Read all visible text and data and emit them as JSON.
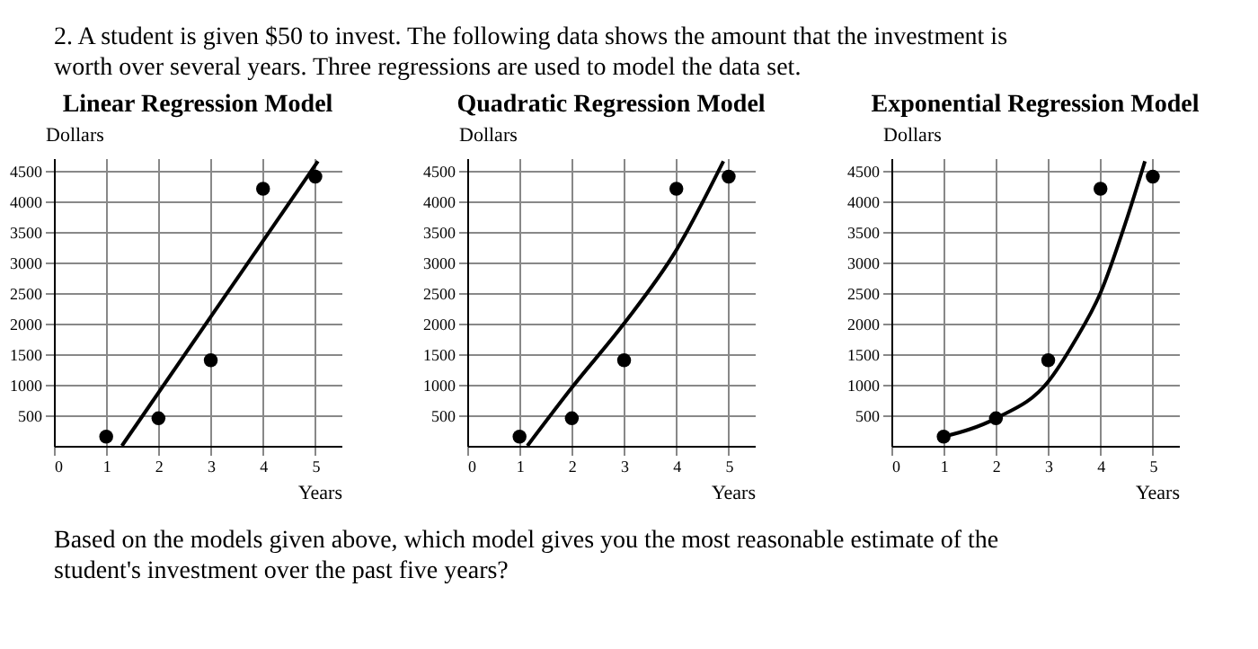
{
  "chart_data": [
    {
      "type": "scatter",
      "title": "Linear Regression Model",
      "xlabel": "Years",
      "ylabel": "Dollars",
      "xlim": [
        0,
        5.5
      ],
      "ylim": [
        0,
        4700
      ],
      "xticks": [
        0,
        1,
        2,
        3,
        4,
        5
      ],
      "yticks": [
        500,
        1000,
        1500,
        2000,
        2500,
        3000,
        3500,
        4000,
        4500
      ],
      "grid": true,
      "annotations": [
        "2. A student is given $50 to invest. The following data shows the amount that the investment is worth over several years. Three regressions are used to model the data set."
      ],
      "series": [
        {
          "marker": "circle",
          "color": "#000000",
          "x": [
            1,
            2,
            3,
            4,
            5
          ],
          "values": [
            150,
            450,
            1400,
            4200,
            4400
          ]
        },
        {
          "type": "line",
          "marker": "none",
          "color": "#000000",
          "x": [
            1.3,
            5.05
          ],
          "values": [
            0,
            4650
          ]
        }
      ]
    },
    {
      "type": "scatter",
      "title": "Quadratic Regression Model",
      "xlabel": "Years",
      "ylabel": "Dollars",
      "xlim": [
        0,
        5.5
      ],
      "ylim": [
        0,
        4700
      ],
      "xticks": [
        0,
        1,
        2,
        3,
        4,
        5
      ],
      "yticks": [
        500,
        1000,
        1500,
        2000,
        2500,
        3000,
        3500,
        4000,
        4500
      ],
      "grid": true,
      "series": [
        {
          "marker": "circle",
          "color": "#000000",
          "x": [
            1,
            2,
            3,
            4,
            5
          ],
          "values": [
            150,
            450,
            1400,
            4200,
            4400
          ]
        },
        {
          "type": "line",
          "marker": "none",
          "color": "#000000",
          "x": [
            1.15,
            2,
            3,
            4,
            4.9
          ],
          "values": [
            0,
            950,
            2000,
            3200,
            4650
          ]
        }
      ]
    },
    {
      "type": "scatter",
      "title": "Exponential Regression Model",
      "xlabel": "Years",
      "ylabel": "Dollars",
      "xlim": [
        0,
        5.5
      ],
      "ylim": [
        0,
        4700
      ],
      "xticks": [
        0,
        1,
        2,
        3,
        4,
        5
      ],
      "yticks": [
        500,
        1000,
        1500,
        2000,
        2500,
        3000,
        3500,
        4000,
        4500
      ],
      "grid": true,
      "annotations": [
        "Based on the models given above, which model gives you the most reasonable estimate of the student's investment over the past five years?"
      ],
      "series": [
        {
          "marker": "circle",
          "color": "#000000",
          "x": [
            1,
            2,
            3,
            4,
            5
          ],
          "values": [
            150,
            450,
            1400,
            4200,
            4400
          ]
        },
        {
          "type": "line",
          "marker": "none",
          "color": "#000000",
          "x": [
            1,
            2,
            3,
            3.5,
            4,
            4.5,
            4.85
          ],
          "values": [
            150,
            450,
            1050,
            1700,
            2500,
            3700,
            4650
          ]
        }
      ]
    }
  ]
}
